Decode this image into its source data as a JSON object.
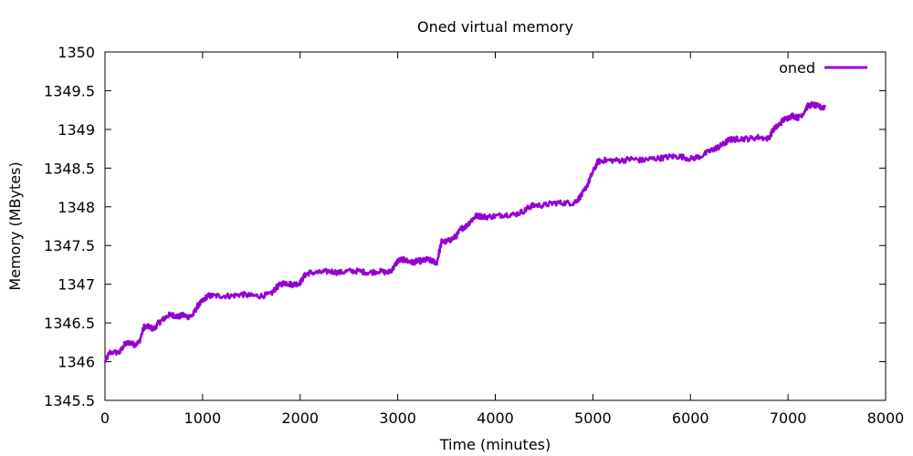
{
  "chart_data": {
    "type": "line",
    "title": "Oned virtual memory",
    "xlabel": "Time (minutes)",
    "ylabel": "Memory (MBytes)",
    "xlim": [
      0,
      8000
    ],
    "ylim": [
      1345.5,
      1350
    ],
    "xticks": [
      0,
      1000,
      2000,
      3000,
      4000,
      5000,
      6000,
      7000,
      8000
    ],
    "yticks": [
      1345.5,
      1346,
      1346.5,
      1347,
      1347.5,
      1348,
      1348.5,
      1349,
      1349.5,
      1350
    ],
    "xtick_labels": [
      "0",
      "1000",
      "2000",
      "3000",
      "4000",
      "5000",
      "6000",
      "7000",
      "8000"
    ],
    "ytick_labels": [
      "1345.5",
      "1346",
      "1346.5",
      "1347",
      "1347.5",
      "1348",
      "1348.5",
      "1349",
      "1349.5",
      "1350"
    ],
    "grid": false,
    "legend_position": "top-right",
    "series": [
      {
        "name": "oned",
        "color": "#9400d3",
        "x": [
          0,
          50,
          150,
          200,
          250,
          300,
          350,
          400,
          450,
          500,
          550,
          600,
          650,
          700,
          750,
          800,
          850,
          900,
          950,
          1000,
          1050,
          1100,
          1200,
          1300,
          1400,
          1500,
          1600,
          1700,
          1750,
          1800,
          1850,
          1900,
          1950,
          2000,
          2050,
          2100,
          2200,
          2300,
          2400,
          2500,
          2600,
          2700,
          2800,
          2900,
          2950,
          3000,
          3050,
          3100,
          3150,
          3200,
          3250,
          3300,
          3350,
          3400,
          3450,
          3500,
          3550,
          3600,
          3650,
          3700,
          3750,
          3800,
          3850,
          3900,
          4000,
          4100,
          4200,
          4300,
          4350,
          4400,
          4500,
          4600,
          4700,
          4800,
          4850,
          4900,
          4950,
          5000,
          5050,
          5100,
          5200,
          5300,
          5400,
          5500,
          5600,
          5700,
          5800,
          5900,
          6000,
          6100,
          6200,
          6250,
          6300,
          6350,
          6400,
          6450,
          6500,
          6600,
          6700,
          6800,
          6850,
          6900,
          6950,
          7000,
          7050,
          7100,
          7150,
          7200,
          7250,
          7300,
          7350,
          7380
        ],
        "y": [
          1346.0,
          1346.12,
          1346.12,
          1346.22,
          1346.25,
          1346.22,
          1346.25,
          1346.45,
          1346.45,
          1346.42,
          1346.5,
          1346.55,
          1346.6,
          1346.6,
          1346.58,
          1346.6,
          1346.58,
          1346.6,
          1346.72,
          1346.78,
          1346.85,
          1346.85,
          1346.85,
          1346.85,
          1346.87,
          1346.85,
          1346.85,
          1346.87,
          1346.95,
          1347.0,
          1347.02,
          1347.0,
          1347.0,
          1347.02,
          1347.12,
          1347.15,
          1347.15,
          1347.17,
          1347.15,
          1347.17,
          1347.17,
          1347.15,
          1347.17,
          1347.15,
          1347.2,
          1347.3,
          1347.32,
          1347.3,
          1347.28,
          1347.3,
          1347.3,
          1347.32,
          1347.3,
          1347.28,
          1347.55,
          1347.55,
          1347.58,
          1347.62,
          1347.72,
          1347.75,
          1347.82,
          1347.88,
          1347.88,
          1347.87,
          1347.88,
          1347.9,
          1347.9,
          1347.95,
          1348.0,
          1348.02,
          1348.02,
          1348.05,
          1348.05,
          1348.05,
          1348.1,
          1348.18,
          1348.3,
          1348.45,
          1348.58,
          1348.6,
          1348.6,
          1348.6,
          1348.62,
          1348.6,
          1348.62,
          1348.63,
          1348.65,
          1348.65,
          1348.62,
          1348.65,
          1348.72,
          1348.75,
          1348.78,
          1348.82,
          1348.87,
          1348.87,
          1348.88,
          1348.88,
          1348.9,
          1348.88,
          1349.0,
          1349.05,
          1349.12,
          1349.15,
          1349.18,
          1349.15,
          1349.2,
          1349.3,
          1349.32,
          1349.3,
          1349.28,
          1349.3
        ]
      }
    ]
  }
}
